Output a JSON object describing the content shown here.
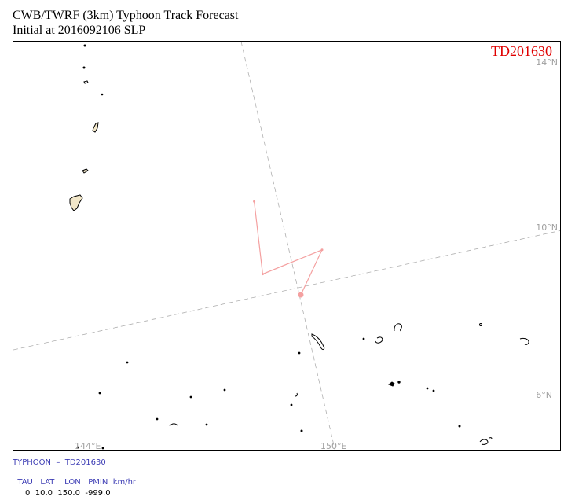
{
  "header": {
    "title_line1": "CWB/TWRF (3km) Typhoon Track Forecast",
    "title_line2": "Initial at 2016092106  SLP"
  },
  "map": {
    "storm_label": "TD201630",
    "lat_labels": [
      "14°N",
      "10°N",
      "6°N"
    ],
    "lon_labels": [
      "144°E",
      "150°E"
    ],
    "colors": {
      "storm_label": "#e00000",
      "track": "#f4a0a0",
      "grid": "#b0b0b0",
      "land_fill": "#f2e7c9"
    },
    "track_points": [
      {
        "lon": 148.6,
        "lat": 11.0
      },
      {
        "lon": 148.8,
        "lat": 8.9
      },
      {
        "lon": 150.2,
        "lat": 9.6
      },
      {
        "lon": 149.7,
        "lat": 8.3
      }
    ]
  },
  "info_panel": {
    "line1": "TYPHOON  –  TD201630",
    "headers": [
      "TAU",
      "LAT",
      "LON",
      "PMIN",
      "km/hr"
    ],
    "row": [
      "0",
      "10.0",
      "150.0",
      "-999.0"
    ]
  }
}
